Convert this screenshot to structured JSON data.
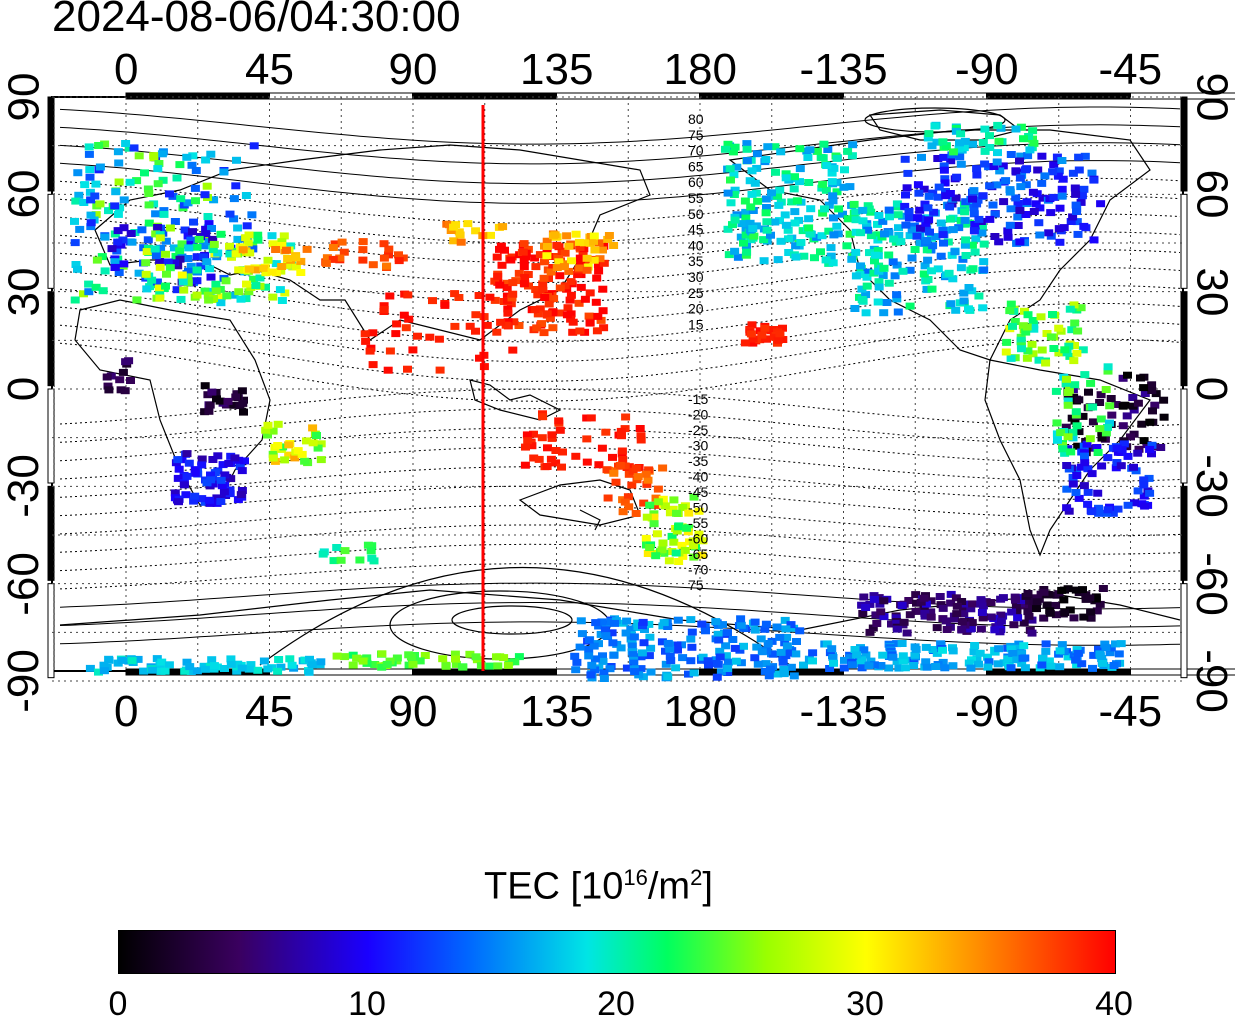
{
  "header": {
    "datetime": "2024-08-06/04:30:00"
  },
  "map": {
    "lon_ticks": [
      "0",
      "45",
      "90",
      "135",
      "180",
      "-135",
      "-90",
      "-45"
    ],
    "lat_ticks_left": [
      "90",
      "60",
      "30",
      "0",
      "-30",
      "-60",
      "-90"
    ],
    "lat_ticks_right": [
      "90",
      "60",
      "30",
      "0",
      "-30",
      "-60",
      "-90"
    ],
    "contour_labels_north": [
      "80",
      "75",
      "70",
      "65",
      "60",
      "55",
      "50",
      "45",
      "40",
      "35",
      "30",
      "25",
      "20",
      "15"
    ],
    "contour_labels_south": [
      "-15",
      "-20",
      "-25",
      "-30",
      "-35",
      "-40",
      "-45",
      "-50",
      "-55",
      "-60",
      "-65",
      "-70",
      "75"
    ],
    "meridian_line_color": "#ff0000"
  },
  "colorbar": {
    "title_main": "TEC  [10",
    "title_exp1": "16",
    "title_mid": "/m",
    "title_exp2": "2",
    "title_end": "]",
    "ticks": [
      "0",
      "10",
      "20",
      "30",
      "40"
    ],
    "colors": [
      "#000000",
      "#1a00ff",
      "#00e5e5",
      "#ffff00",
      "#ff0000"
    ]
  }
}
